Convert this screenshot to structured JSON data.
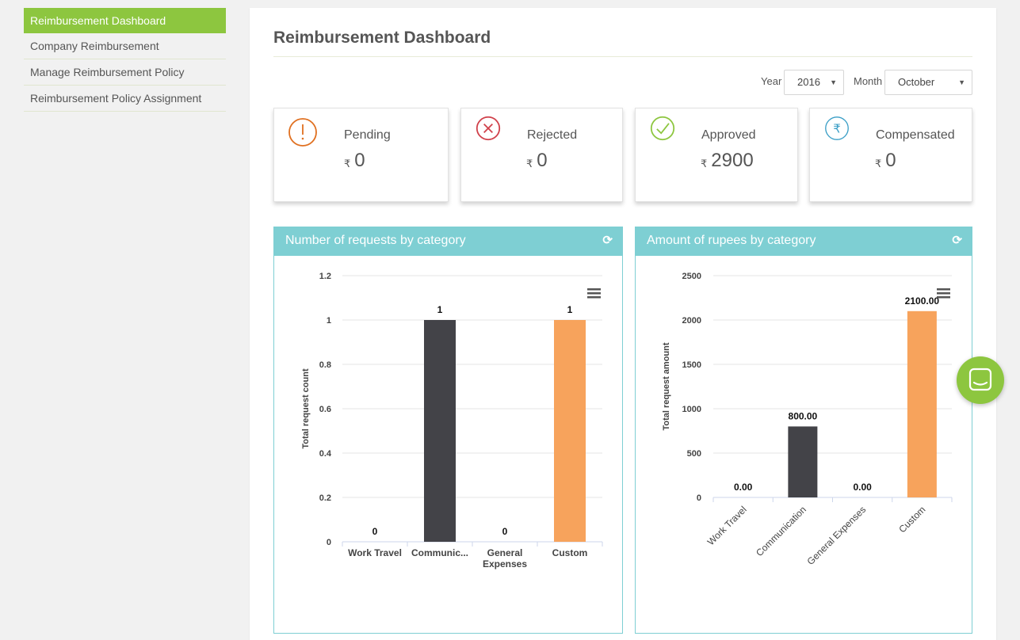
{
  "sidebar": {
    "items": [
      {
        "label": "Reimbursement Dashboard",
        "active": true
      },
      {
        "label": "Company Reimbursement"
      },
      {
        "label": "Manage Reimbursement Policy"
      },
      {
        "label": "Reimbursement Policy Assignment"
      }
    ]
  },
  "page": {
    "title": "Reimbursement Dashboard"
  },
  "filters": {
    "year_label": "Year",
    "year_value": "2016",
    "month_label": "Month",
    "month_value": "October"
  },
  "currency_symbol": "₹",
  "cards": [
    {
      "label": "Pending",
      "value": "0",
      "icon": "exclamation-circle-icon",
      "color": "#e07020"
    },
    {
      "label": "Rejected",
      "value": "0",
      "icon": "x-circle-icon",
      "color": "#d0404a"
    },
    {
      "label": "Approved",
      "value": "2900",
      "icon": "check-circle-icon",
      "color": "#8dc63f"
    },
    {
      "label": "Compensated",
      "value": "0",
      "icon": "rupee-circle-icon",
      "color": "#3a9ec6"
    }
  ],
  "charts": {
    "requests_title": "Number of requests by category",
    "amount_title": "Amount of rupees by category"
  },
  "chart_data": [
    {
      "type": "bar",
      "title": "Number of requests by category",
      "xlabel": "",
      "ylabel": "Total request count",
      "categories": [
        "Work Travel",
        "Communic...",
        "General Expenses",
        "Custom"
      ],
      "values": [
        0,
        1,
        0,
        1
      ],
      "data_labels": [
        "0",
        "1",
        "0",
        "1"
      ],
      "colors": [
        "#434348",
        "#434348",
        "#434348",
        "#f7a35c"
      ],
      "ylim": [
        0,
        1.2
      ],
      "yticks": [
        "0",
        "0.2",
        "0.4",
        "0.6",
        "0.8",
        "1",
        "1.2"
      ],
      "grid": true
    },
    {
      "type": "bar",
      "title": "Amount of rupees by category",
      "xlabel": "",
      "ylabel": "Total request amount",
      "categories": [
        "Work Travel",
        "Communication",
        "General Expenses",
        "Custom"
      ],
      "values": [
        0,
        800,
        0,
        2100
      ],
      "data_labels": [
        "0.00",
        "800.00",
        "0.00",
        "2100.00"
      ],
      "colors": [
        "#434348",
        "#434348",
        "#434348",
        "#f7a35c"
      ],
      "ylim": [
        0,
        2500
      ],
      "yticks": [
        "0",
        "500",
        "1000",
        "1500",
        "2000",
        "2500"
      ],
      "grid": true
    }
  ],
  "colors": {
    "accent": "#8dc63f",
    "chart_header": "#7ecfd3"
  }
}
